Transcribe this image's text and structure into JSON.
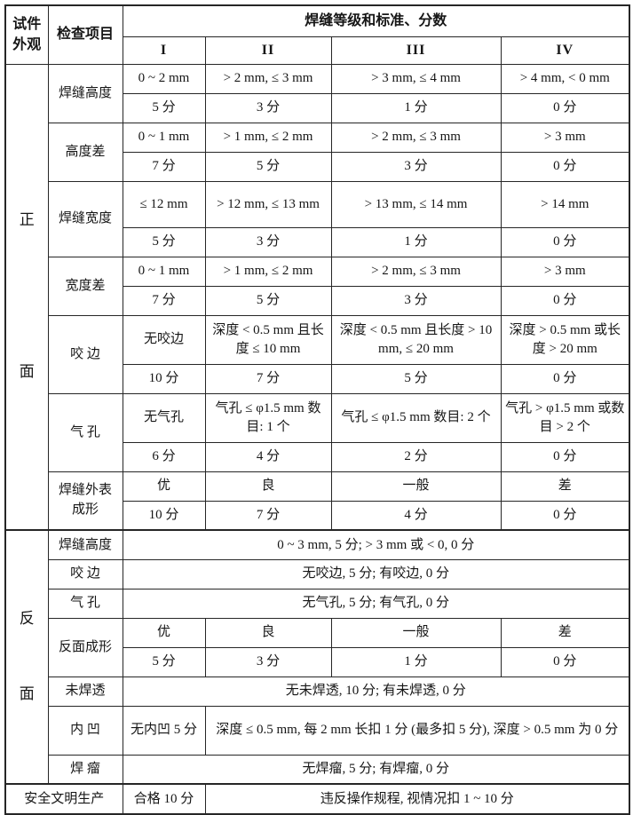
{
  "table": {
    "corner": {
      "line1": "试件",
      "line2": "外观"
    },
    "check_item_header": "检查项目",
    "grade_header": "焊缝等级和标准、分数",
    "grade_cols": [
      "I",
      "II",
      "III",
      "IV"
    ],
    "front": {
      "side_char_top": "正",
      "side_char_bottom": "面",
      "items": [
        {
          "label": "焊缝高度",
          "std": [
            "0 ~ 2 mm",
            "> 2 mm, ≤ 3 mm",
            "> 3 mm, ≤ 4 mm",
            "> 4 mm, < 0 mm"
          ],
          "scores": [
            "5 分",
            "3 分",
            "1 分",
            "0 分"
          ]
        },
        {
          "label": "高度差",
          "std": [
            "0 ~ 1 mm",
            "> 1 mm, ≤ 2 mm",
            "> 2 mm, ≤ 3 mm",
            "> 3 mm"
          ],
          "scores": [
            "7 分",
            "5 分",
            "3 分",
            "0 分"
          ]
        },
        {
          "label": "焊缝宽度",
          "std": [
            "≤ 12 mm",
            "> 12 mm, ≤ 13 mm",
            "> 13 mm, ≤ 14 mm",
            "> 14 mm"
          ],
          "scores": [
            "5 分",
            "3 分",
            "1 分",
            "0 分"
          ]
        },
        {
          "label": "宽度差",
          "std": [
            "0 ~ 1 mm",
            "> 1 mm, ≤ 2 mm",
            "> 2 mm, ≤ 3 mm",
            "> 3 mm"
          ],
          "scores": [
            "7 分",
            "5 分",
            "3 分",
            "0 分"
          ]
        },
        {
          "label": "咬 边",
          "std": [
            "无咬边",
            "深度 < 0.5 mm 且长度 ≤ 10 mm",
            "深度 < 0.5 mm 且长度 > 10 mm, ≤ 20 mm",
            "深度 > 0.5 mm 或长度 > 20 mm"
          ],
          "scores": [
            "10 分",
            "7 分",
            "5 分",
            "0 分"
          ]
        },
        {
          "label": "气 孔",
          "std": [
            "无气孔",
            "气孔 ≤ φ1.5 mm 数目: 1 个",
            "气孔 ≤ φ1.5 mm 数目: 2 个",
            "气孔 > φ1.5 mm 或数目 > 2 个"
          ],
          "scores": [
            "6 分",
            "4 分",
            "2 分",
            "0 分"
          ]
        },
        {
          "label": "焊缝外表",
          "label2": "成形",
          "std": [
            "优",
            "良",
            "一般",
            "差"
          ],
          "scores": [
            "10 分",
            "7 分",
            "4 分",
            "0 分"
          ]
        }
      ]
    },
    "back": {
      "side_char_top": "反",
      "side_char_bottom": "面",
      "rows": [
        {
          "label": "焊缝高度",
          "full": "0 ~ 3 mm, 5 分; > 3 mm 或 < 0, 0 分"
        },
        {
          "label": "咬 边",
          "full": "无咬边, 5 分; 有咬边, 0 分"
        },
        {
          "label": "气 孔",
          "full": "无气孔, 5 分; 有气孔, 0 分"
        },
        {
          "label": "反面成形",
          "grades": [
            "优",
            "良",
            "一般",
            "差"
          ],
          "scores": [
            "5 分",
            "3 分",
            "1 分",
            "0 分"
          ]
        },
        {
          "label": "未焊透",
          "full": "无未焊透, 10 分; 有未焊透, 0 分"
        },
        {
          "label": "内 凹",
          "grade1": "无内凹 5 分",
          "rest": "深度 ≤ 0.5 mm, 每 2 mm 长扣 1 分 (最多扣 5 分), 深度 > 0.5 mm 为 0 分"
        },
        {
          "label": "焊 瘤",
          "full": "无焊瘤, 5 分; 有焊瘤, 0 分"
        }
      ]
    },
    "safety": {
      "label": "安全文明生产",
      "grade1": "合格 10 分",
      "rest": "违反操作规程, 视情况扣 1 ~ 10 分"
    }
  }
}
